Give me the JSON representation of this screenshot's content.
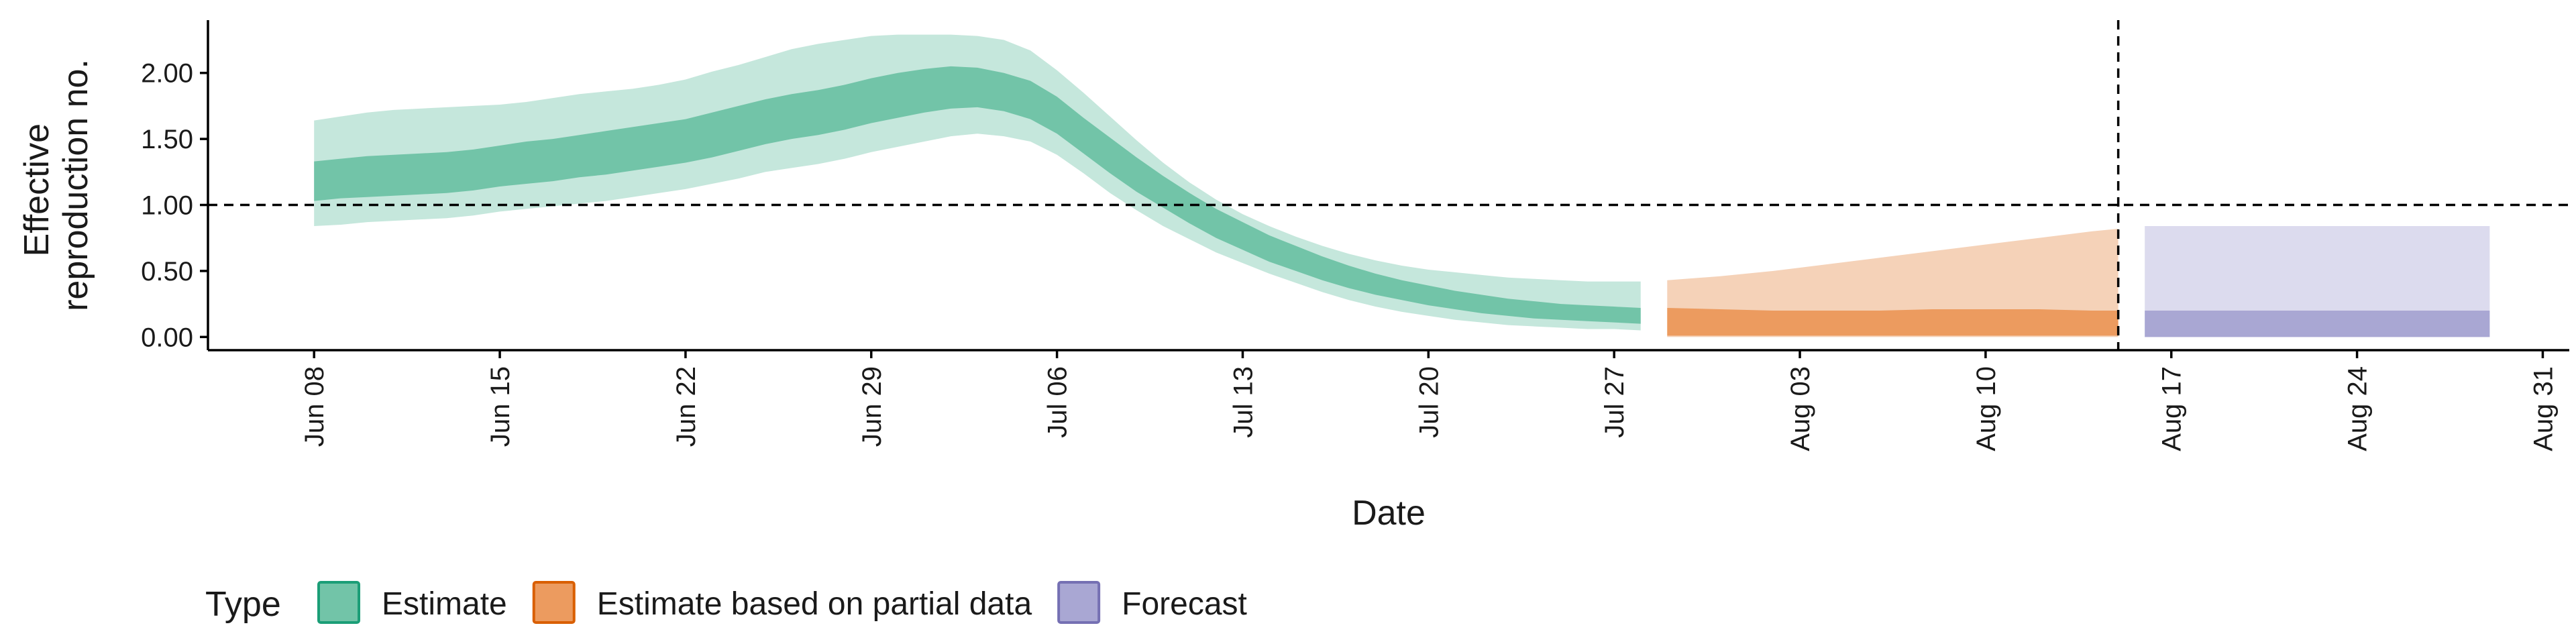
{
  "chart_data": {
    "type": "area",
    "xlabel": "Date",
    "ylabel_lines": [
      "Effective",
      "reproduction no."
    ],
    "ylim": [
      -0.1,
      2.4
    ],
    "xlim": [
      "2020-06-04",
      "2020-09-01"
    ],
    "y_ticks": [
      0,
      0.5,
      1,
      1.5,
      2
    ],
    "y_tick_labels": [
      "0.00",
      "0.50",
      "1.00",
      "1.50",
      "2.00"
    ],
    "x_ticks": [
      "2020-06-08",
      "2020-06-15",
      "2020-06-22",
      "2020-06-29",
      "2020-07-06",
      "2020-07-13",
      "2020-07-20",
      "2020-07-27",
      "2020-08-03",
      "2020-08-10",
      "2020-08-17",
      "2020-08-24",
      "2020-08-31"
    ],
    "x_tick_labels": [
      "Jun 08",
      "Jun 15",
      "Jun 22",
      "Jun 29",
      "Jul 06",
      "Jul 13",
      "Jul 20",
      "Jul 27",
      "Aug 03",
      "Aug 10",
      "Aug 17",
      "Aug 24",
      "Aug 31"
    ],
    "reference_line_y": 1,
    "forecast_start_date": "2020-08-15",
    "grid": false,
    "legend_position": "bottom-left",
    "legend_title": "Type",
    "legend": [
      {
        "label": "Estimate",
        "fill": "#72c4a8",
        "stroke": "#1b9e77"
      },
      {
        "label": "Estimate based on partial data",
        "fill": "#ec9b5f",
        "stroke": "#d95f02"
      },
      {
        "label": "Forecast",
        "fill": "#a9a7d3",
        "stroke": "#7570b3"
      }
    ],
    "series": [
      {
        "type": "Estimate",
        "outer_color": "#c5e7dc",
        "inner_color": "#72c4a8",
        "x": [
          "2020-06-08",
          "2020-06-09",
          "2020-06-10",
          "2020-06-11",
          "2020-06-12",
          "2020-06-13",
          "2020-06-14",
          "2020-06-15",
          "2020-06-16",
          "2020-06-17",
          "2020-06-18",
          "2020-06-19",
          "2020-06-20",
          "2020-06-21",
          "2020-06-22",
          "2020-06-23",
          "2020-06-24",
          "2020-06-25",
          "2020-06-26",
          "2020-06-27",
          "2020-06-28",
          "2020-06-29",
          "2020-06-30",
          "2020-07-01",
          "2020-07-02",
          "2020-07-03",
          "2020-07-04",
          "2020-07-05",
          "2020-07-06",
          "2020-07-07",
          "2020-07-08",
          "2020-07-09",
          "2020-07-10",
          "2020-07-11",
          "2020-07-12",
          "2020-07-13",
          "2020-07-14",
          "2020-07-15",
          "2020-07-16",
          "2020-07-17",
          "2020-07-18",
          "2020-07-19",
          "2020-07-20",
          "2020-07-21",
          "2020-07-22",
          "2020-07-23",
          "2020-07-24",
          "2020-07-25",
          "2020-07-26",
          "2020-07-27",
          "2020-07-28"
        ],
        "outer_lower": [
          0.84,
          0.85,
          0.87,
          0.88,
          0.89,
          0.9,
          0.92,
          0.95,
          0.97,
          0.99,
          1.01,
          1.03,
          1.06,
          1.09,
          1.12,
          1.16,
          1.2,
          1.25,
          1.28,
          1.31,
          1.35,
          1.4,
          1.44,
          1.48,
          1.52,
          1.54,
          1.52,
          1.48,
          1.38,
          1.24,
          1.09,
          0.96,
          0.84,
          0.74,
          0.64,
          0.56,
          0.48,
          0.41,
          0.34,
          0.28,
          0.23,
          0.19,
          0.16,
          0.13,
          0.11,
          0.09,
          0.08,
          0.07,
          0.06,
          0.06,
          0.05
        ],
        "inner_lower": [
          1.03,
          1.05,
          1.06,
          1.07,
          1.08,
          1.09,
          1.11,
          1.14,
          1.16,
          1.18,
          1.21,
          1.23,
          1.26,
          1.29,
          1.32,
          1.36,
          1.41,
          1.46,
          1.5,
          1.53,
          1.57,
          1.62,
          1.66,
          1.7,
          1.73,
          1.74,
          1.71,
          1.65,
          1.54,
          1.39,
          1.24,
          1.1,
          0.98,
          0.86,
          0.75,
          0.66,
          0.57,
          0.5,
          0.43,
          0.37,
          0.32,
          0.28,
          0.24,
          0.21,
          0.18,
          0.16,
          0.14,
          0.13,
          0.12,
          0.11,
          0.1
        ],
        "inner_upper": [
          1.33,
          1.35,
          1.37,
          1.38,
          1.39,
          1.4,
          1.42,
          1.45,
          1.48,
          1.5,
          1.53,
          1.56,
          1.59,
          1.62,
          1.65,
          1.7,
          1.75,
          1.8,
          1.84,
          1.87,
          1.91,
          1.96,
          2.0,
          2.03,
          2.05,
          2.04,
          2.0,
          1.94,
          1.82,
          1.66,
          1.51,
          1.36,
          1.22,
          1.09,
          0.97,
          0.87,
          0.77,
          0.69,
          0.61,
          0.54,
          0.48,
          0.43,
          0.39,
          0.35,
          0.32,
          0.29,
          0.27,
          0.25,
          0.24,
          0.23,
          0.22
        ],
        "outer_upper": [
          1.64,
          1.67,
          1.7,
          1.72,
          1.73,
          1.74,
          1.75,
          1.76,
          1.78,
          1.81,
          1.84,
          1.86,
          1.88,
          1.91,
          1.95,
          2.01,
          2.06,
          2.12,
          2.18,
          2.22,
          2.25,
          2.28,
          2.29,
          2.29,
          2.29,
          2.28,
          2.25,
          2.17,
          2.02,
          1.85,
          1.67,
          1.49,
          1.32,
          1.17,
          1.04,
          0.93,
          0.84,
          0.76,
          0.69,
          0.63,
          0.58,
          0.54,
          0.51,
          0.49,
          0.47,
          0.45,
          0.44,
          0.43,
          0.42,
          0.42,
          0.42
        ]
      },
      {
        "type": "Estimate based on partial data",
        "outer_color": "#f5d2b8",
        "inner_color": "#ec9b5f",
        "x": [
          "2020-07-29",
          "2020-07-31",
          "2020-08-02",
          "2020-08-04",
          "2020-08-06",
          "2020-08-08",
          "2020-08-10",
          "2020-08-12",
          "2020-08-14",
          "2020-08-15"
        ],
        "outer_lower": [
          0,
          0,
          0,
          0,
          0,
          0,
          0,
          0,
          0,
          0
        ],
        "inner_lower": [
          0.01,
          0.01,
          0.01,
          0.01,
          0.01,
          0.01,
          0.01,
          0.01,
          0.01,
          0.01
        ],
        "inner_upper": [
          0.22,
          0.21,
          0.2,
          0.2,
          0.2,
          0.21,
          0.21,
          0.21,
          0.2,
          0.2
        ],
        "outer_upper": [
          0.43,
          0.46,
          0.5,
          0.55,
          0.6,
          0.65,
          0.7,
          0.75,
          0.8,
          0.82
        ]
      },
      {
        "type": "Forecast",
        "outer_color": "#dcdbee",
        "inner_color": "#a9a7d3",
        "x": [
          "2020-08-16",
          "2020-08-29"
        ],
        "outer_lower": [
          0,
          0
        ],
        "inner_lower": [
          0,
          0
        ],
        "inner_upper": [
          0.2,
          0.2
        ],
        "outer_upper": [
          0.84,
          0.84
        ]
      }
    ]
  }
}
